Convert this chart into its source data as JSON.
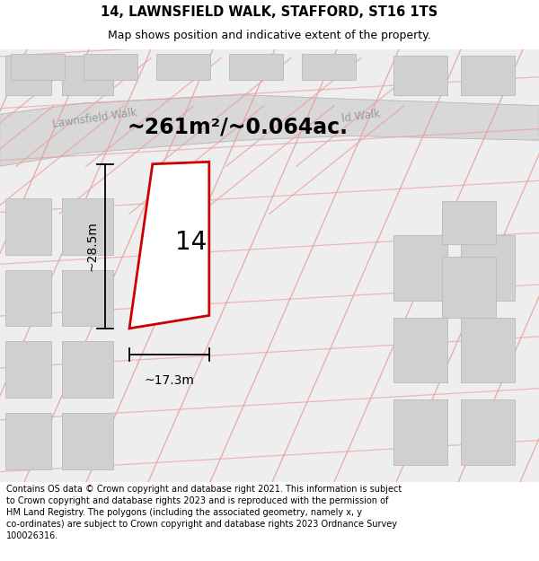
{
  "title": "14, LAWNSFIELD WALK, STAFFORD, ST16 1TS",
  "subtitle": "Map shows position and indicative extent of the property.",
  "footer": "Contains OS data © Crown copyright and database right 2021. This information is subject\nto Crown copyright and database rights 2023 and is reproduced with the permission of\nHM Land Registry. The polygons (including the associated geometry, namely x, y\nco-ordinates) are subject to Crown copyright and database rights 2023 Ordnance Survey\n100026316.",
  "area_label": "~261m²/~0.064ac.",
  "width_label": "~17.3m",
  "height_label": "~28.5m",
  "plot_number": "14",
  "map_bg": "#eeeeee",
  "road_fill": "#d8d8d8",
  "building_fill": "#d0d0d0",
  "building_stroke": "#bbbbbb",
  "pink_line_color": "#e8a0a0",
  "red_polygon_color": "#cc0000",
  "road_label_color": "#999999",
  "white_fill": "#ffffff",
  "title_fontsize": 10.5,
  "subtitle_fontsize": 9,
  "footer_fontsize": 7,
  "area_label_fontsize": 17,
  "plot_number_fontsize": 20,
  "measure_fontsize": 10
}
